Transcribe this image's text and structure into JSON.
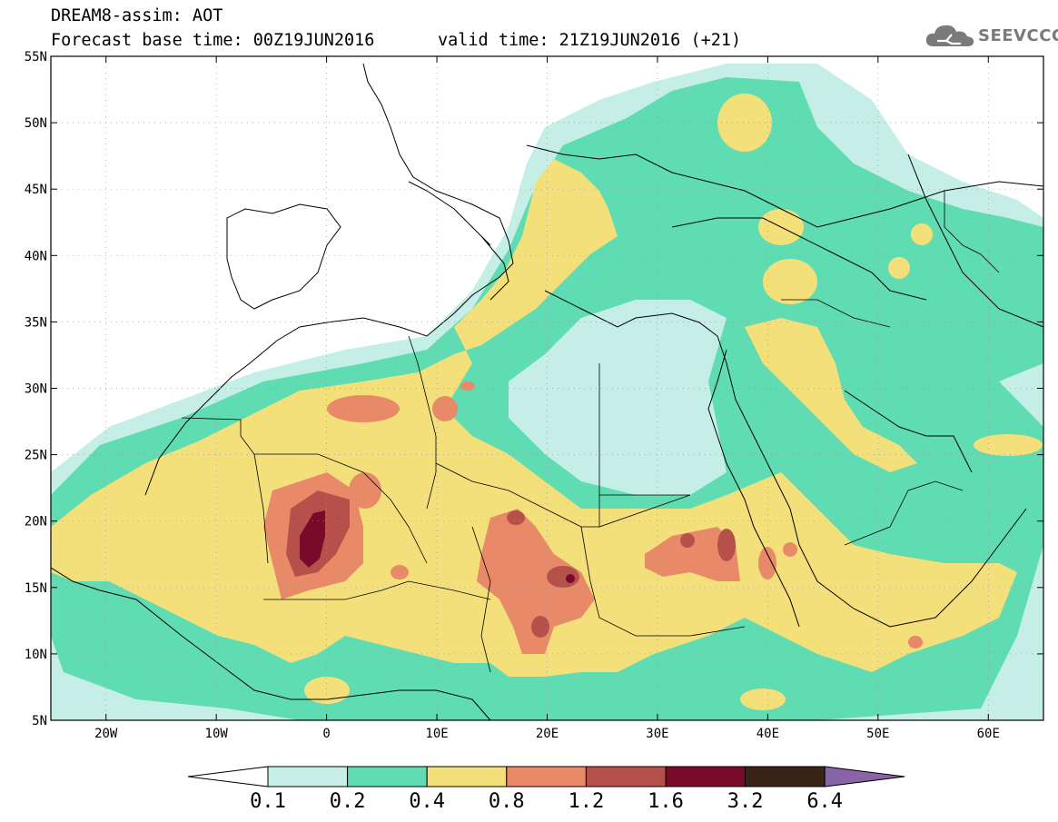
{
  "header": {
    "line1": "DREAM8-assim: AOT",
    "line2": "Forecast base time: 00Z19JUN2016",
    "line3": "valid time: 21Z19JUN2016 (+21)",
    "logo": "SEEVCCC"
  },
  "map": {
    "lat_labels": [
      "55N",
      "50N",
      "45N",
      "40N",
      "35N",
      "30N",
      "25N",
      "20N",
      "15N",
      "10N",
      "5N"
    ],
    "lon_labels": [
      "20W",
      "10W",
      "0",
      "10E",
      "20E",
      "30E",
      "40E",
      "50E",
      "60E"
    ]
  },
  "colorbar": {
    "labels": [
      "0.1",
      "0.2",
      "0.4",
      "0.8",
      "1.2",
      "1.6",
      "3.2",
      "6.4"
    ],
    "colors": [
      "#ffffff",
      "#c4eee6",
      "#5fdcb2",
      "#f4e07a",
      "#e88a68",
      "#b6504a",
      "#7a0a2a",
      "#3a2418",
      "#8a64a8"
    ]
  },
  "colors": {
    "c1": "#c4eee6",
    "c2": "#5fdcb2",
    "c3": "#f4e07a",
    "c4": "#e88a68",
    "c5": "#b6504a",
    "c6": "#7a0a2a"
  }
}
